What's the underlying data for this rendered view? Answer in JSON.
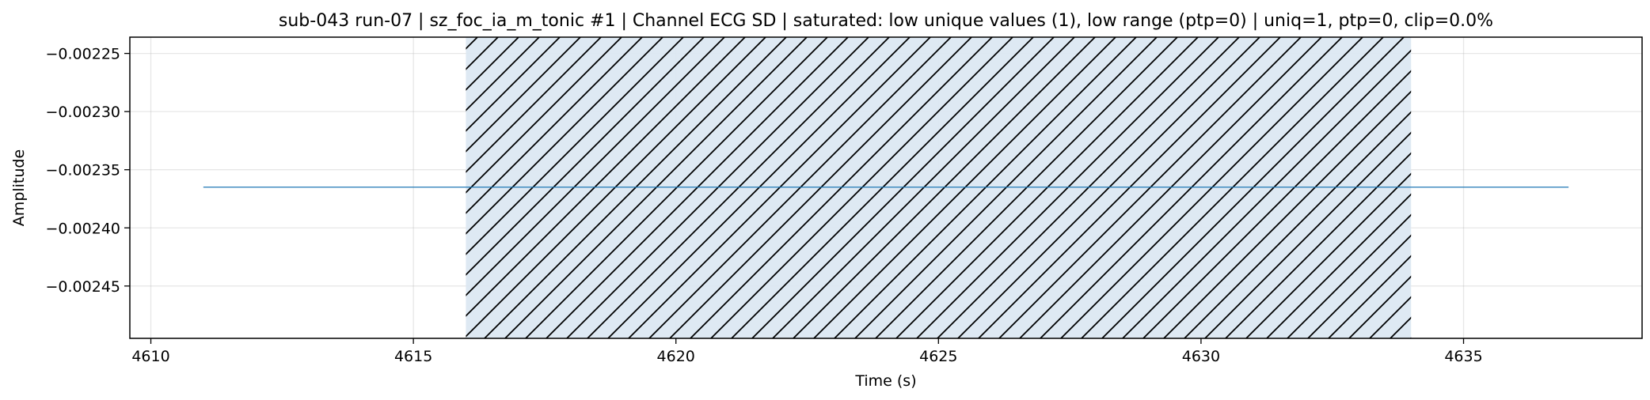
{
  "chart_data": {
    "type": "line",
    "title": "sub-043 run-07 | sz_foc_ia_m_tonic #1 | Channel ECG SD | saturated: low unique values (1), low range (ptp=0) | uniq=1, ptp=0, clip=0.0%",
    "xlabel": "Time (s)",
    "ylabel": "Amplitude",
    "xlim": [
      4609.6,
      4638.4
    ],
    "ylim": [
      -0.002495,
      -0.002236
    ],
    "x_ticks": [
      4610,
      4615,
      4620,
      4625,
      4630,
      4635
    ],
    "x_tick_labels": [
      "4610",
      "4615",
      "4620",
      "4625",
      "4630",
      "4635"
    ],
    "y_ticks": [
      -0.00225,
      -0.0023,
      -0.00235,
      -0.0024,
      -0.00245
    ],
    "y_tick_labels": [
      "−0.00225",
      "−0.00230",
      "−0.00235",
      "−0.00240",
      "−0.00245"
    ],
    "grid": true,
    "series": [
      {
        "x": [
          4611,
          4637
        ],
        "values": [
          -0.002365,
          -0.002365
        ],
        "color": "#1f77b4"
      }
    ],
    "highlight": {
      "x_start": 4616,
      "x_end": 4634,
      "fill": "#dce8f2",
      "hatch": "diagonal"
    }
  }
}
